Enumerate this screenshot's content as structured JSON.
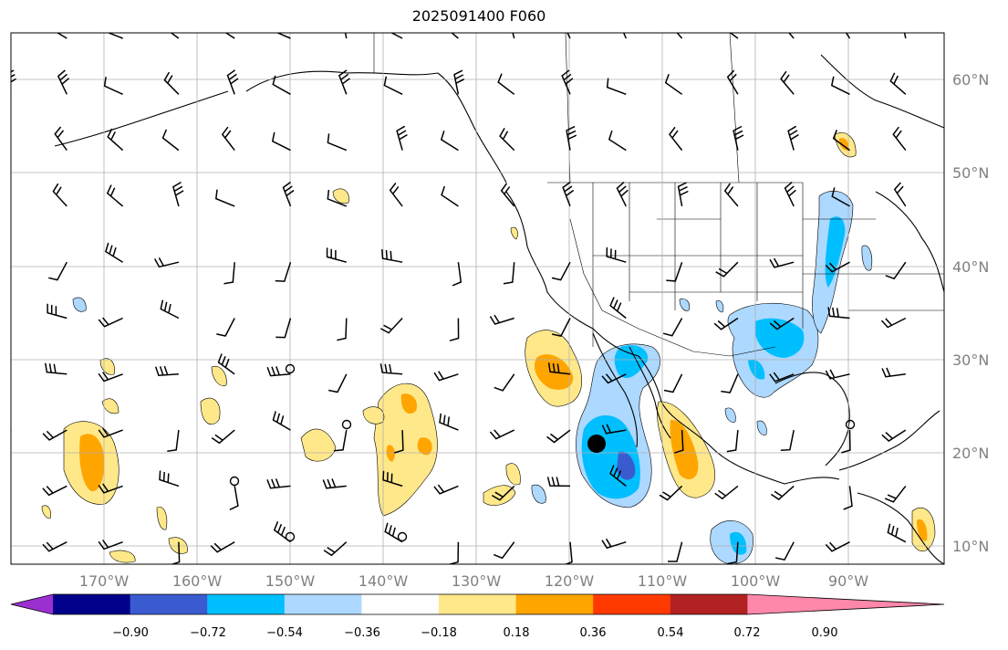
{
  "title": "2025091400 F060",
  "map": {
    "lat_labels": [
      "60°N",
      "50°N",
      "40°N",
      "30°N",
      "20°N",
      "10°N"
    ],
    "lon_labels": [
      "170°W",
      "160°W",
      "150°W",
      "140°W",
      "130°W",
      "120°W",
      "110°W",
      "100°W",
      "90°W"
    ],
    "marker": {
      "label": "storm center",
      "lat": 21,
      "lon": -116.5
    }
  },
  "colorbar": {
    "tick_labels": [
      "−0.90",
      "−0.72",
      "−0.54",
      "−0.36",
      "−0.18",
      "0.18",
      "0.36",
      "0.54",
      "0.72",
      "0.90"
    ],
    "colors": [
      "#9b30d0",
      "#00008b",
      "#3a5bd0",
      "#00bfff",
      "#add8ff",
      "#ffffff",
      "#ffe88a",
      "#ffa500",
      "#ff3a00",
      "#b22222",
      "#ff88aa"
    ]
  }
}
